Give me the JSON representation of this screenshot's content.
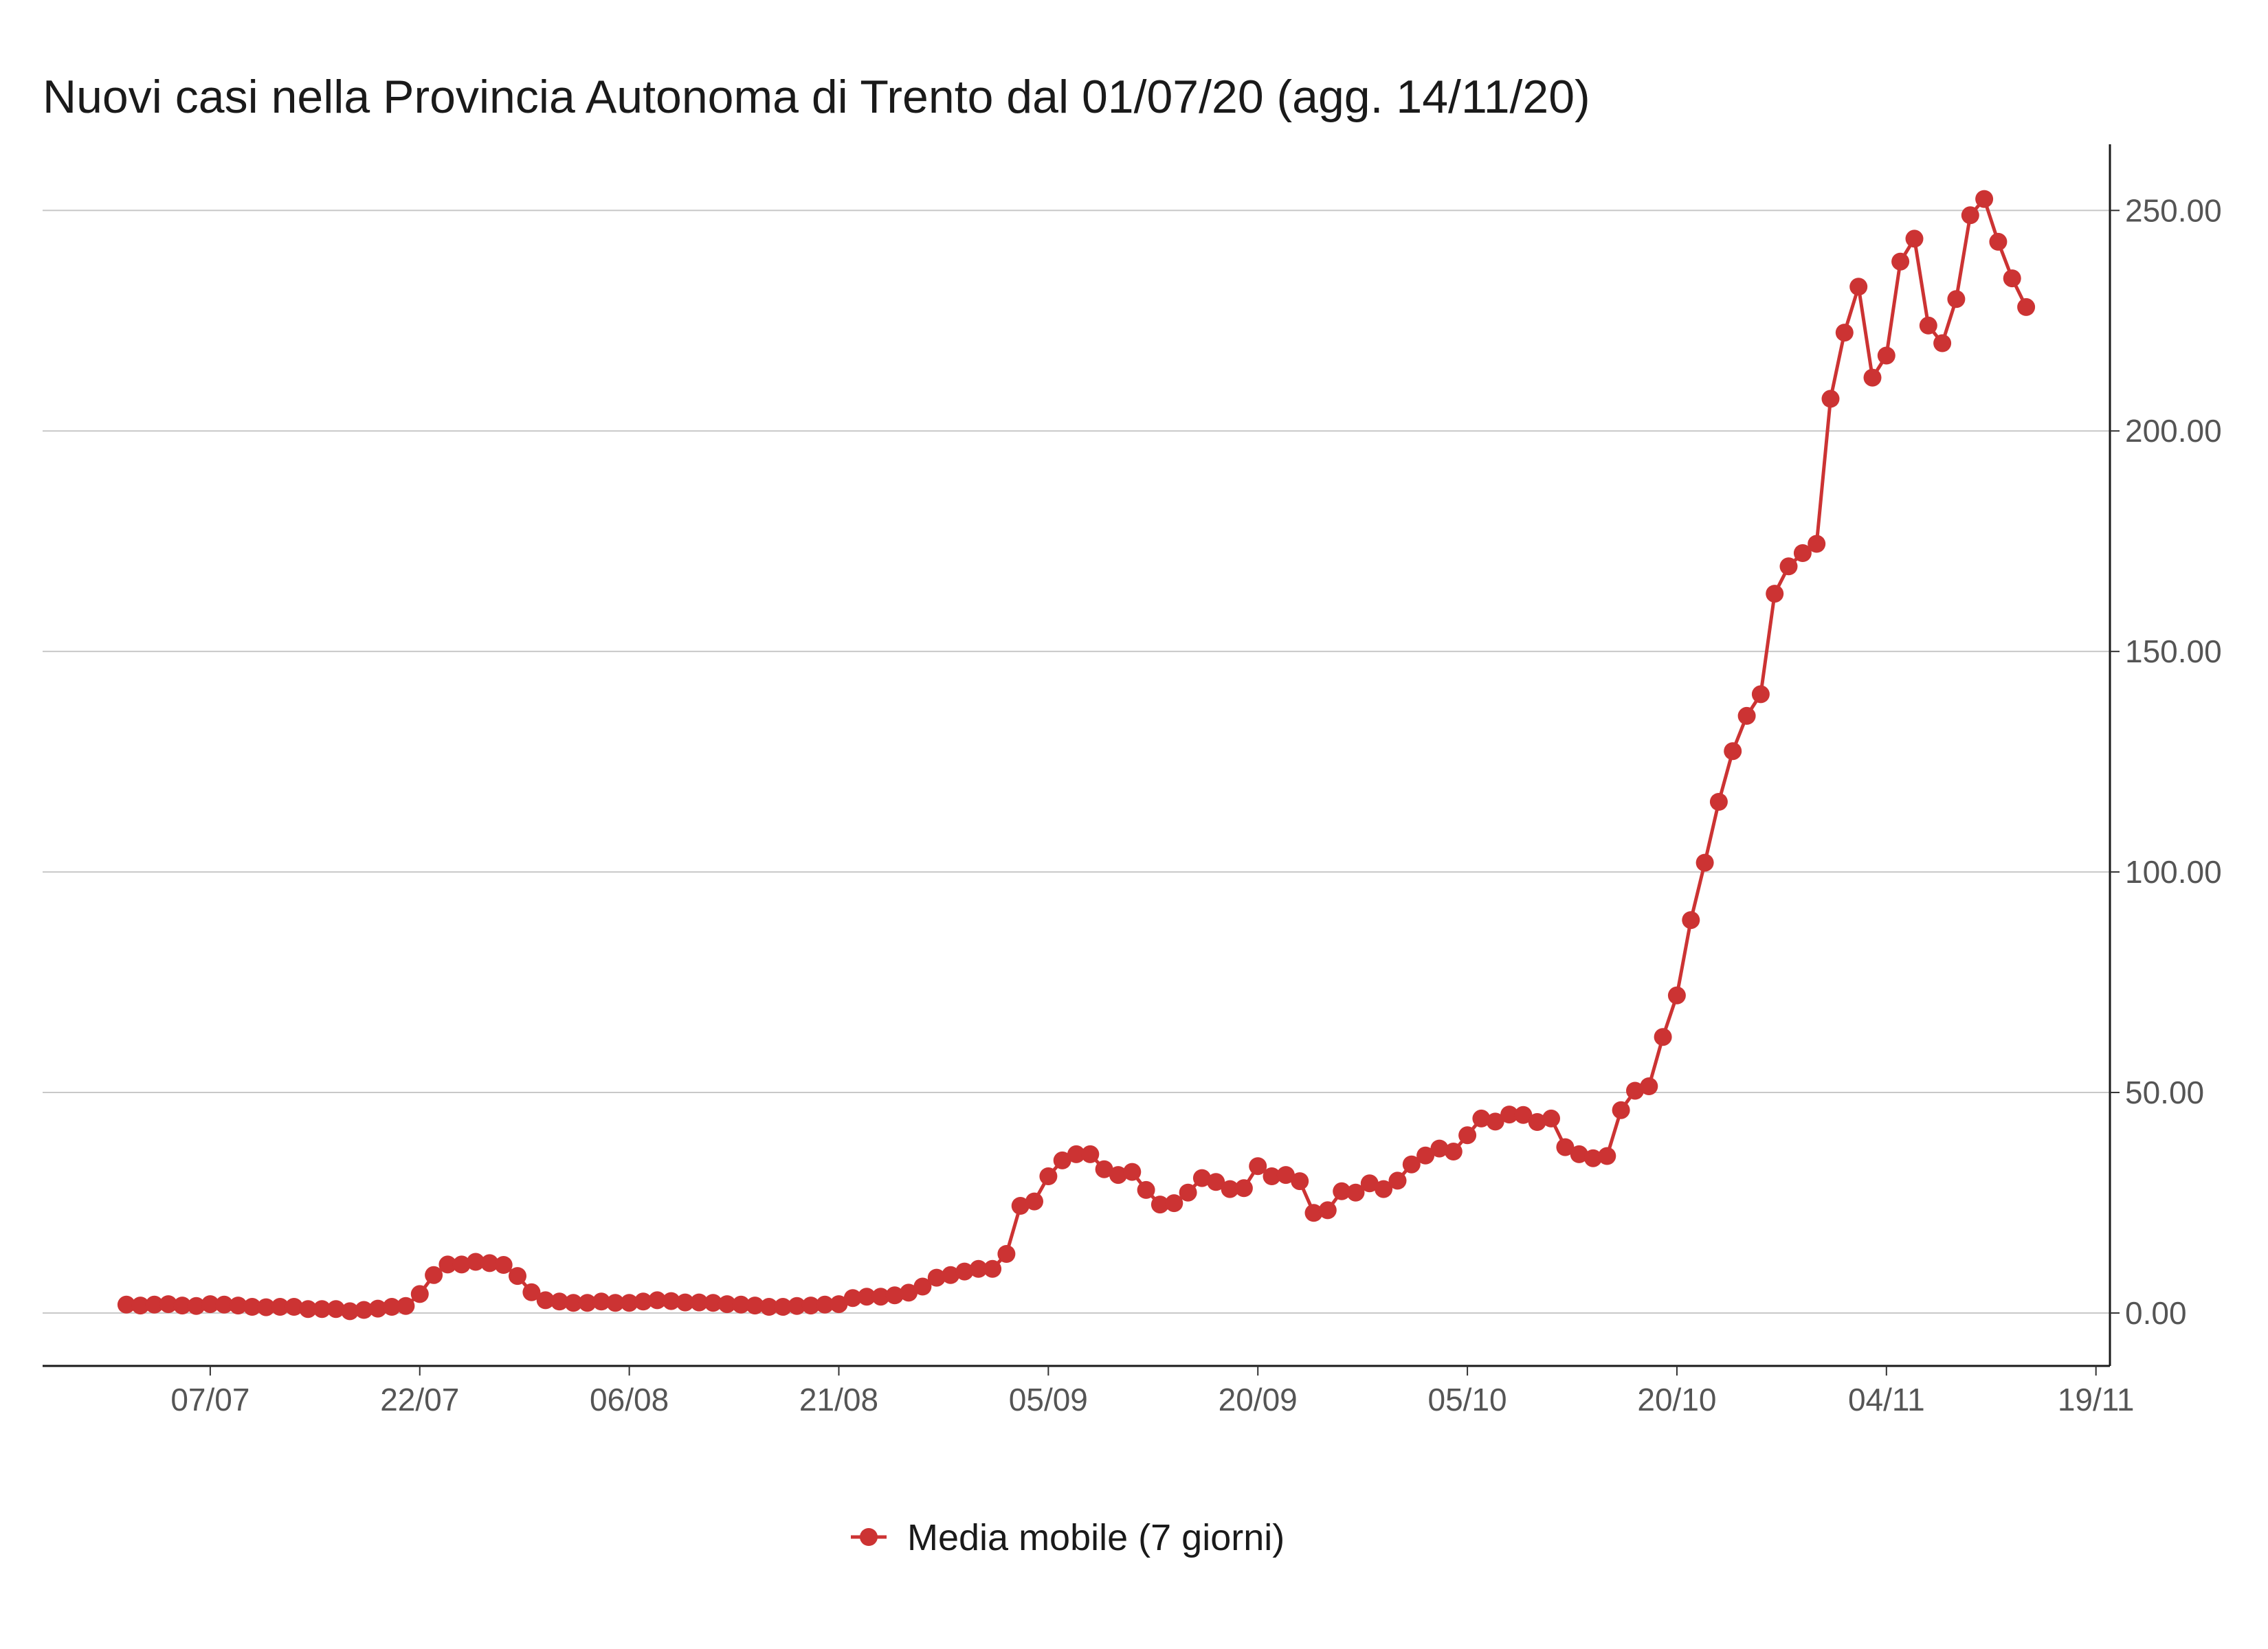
{
  "chart_data": {
    "type": "line",
    "title": "Nuovi casi nella Provincia Autonoma di Trento dal 01/07/20 (agg. 14/11/20)",
    "xlabel": "",
    "ylabel": "",
    "x_start": "2020-07-01",
    "x_ticks": [
      {
        "date": "2020-07-07",
        "label": "07/07"
      },
      {
        "date": "2020-07-22",
        "label": "22/07"
      },
      {
        "date": "2020-08-06",
        "label": "06/08"
      },
      {
        "date": "2020-08-21",
        "label": "21/08"
      },
      {
        "date": "2020-09-05",
        "label": "05/09"
      },
      {
        "date": "2020-09-20",
        "label": "20/09"
      },
      {
        "date": "2020-10-05",
        "label": "05/10"
      },
      {
        "date": "2020-10-20",
        "label": "20/10"
      },
      {
        "date": "2020-11-04",
        "label": "04/11"
      },
      {
        "date": "2020-11-19",
        "label": "19/11"
      }
    ],
    "xlim": [
      "2020-06-25",
      "2020-11-20"
    ],
    "ylim": [
      -12,
      265
    ],
    "y_ticks": [
      {
        "value": 0,
        "label": "0.00"
      },
      {
        "value": 50,
        "label": "50.00"
      },
      {
        "value": 100,
        "label": "100.00"
      },
      {
        "value": 150,
        "label": "150.00"
      },
      {
        "value": 200,
        "label": "200.00"
      },
      {
        "value": 250,
        "label": "250.00"
      }
    ],
    "y_axis_position": "right",
    "grid": "horizontal",
    "legend_position": "bottom-center",
    "series": [
      {
        "name": "Media mobile (7 giorni)",
        "color": "#cc3333",
        "marker": "circle",
        "values": [
          1.9,
          1.7,
          1.9,
          2.0,
          1.7,
          1.6,
          2.0,
          1.9,
          1.7,
          1.4,
          1.3,
          1.4,
          1.4,
          0.9,
          0.9,
          0.9,
          0.4,
          0.7,
          1.0,
          1.4,
          1.6,
          4.3,
          8.6,
          11.0,
          11.0,
          11.6,
          11.3,
          10.9,
          8.4,
          4.7,
          2.9,
          2.6,
          2.3,
          2.3,
          2.6,
          2.3,
          2.3,
          2.6,
          2.9,
          2.7,
          2.4,
          2.4,
          2.3,
          2.0,
          1.9,
          1.7,
          1.4,
          1.4,
          1.6,
          1.7,
          1.9,
          2.0,
          3.4,
          3.7,
          3.7,
          4.0,
          4.6,
          6.0,
          8.0,
          8.6,
          9.4,
          10.0,
          10.0,
          13.4,
          24.3,
          25.3,
          31.0,
          34.6,
          36.0,
          36.0,
          32.6,
          31.3,
          32.0,
          27.9,
          24.6,
          24.9,
          27.3,
          30.6,
          29.7,
          28.1,
          28.3,
          33.3,
          31.0,
          31.3,
          29.9,
          22.7,
          23.3,
          27.6,
          27.3,
          29.4,
          28.1,
          30.0,
          33.7,
          35.7,
          37.3,
          36.6,
          40.3,
          44.1,
          43.4,
          45.0,
          44.9,
          43.3,
          44.1,
          37.6,
          36.0,
          35.1,
          35.6,
          46.0,
          50.4,
          51.4,
          62.6,
          72.0,
          89.1,
          102.1,
          115.9,
          127.4,
          135.4,
          140.3,
          163.1,
          169.3,
          172.3,
          174.4,
          207.3,
          222.3,
          232.7,
          212.1,
          217.1,
          238.4,
          243.6,
          223.9,
          219.9,
          229.9,
          248.9,
          252.6,
          242.9,
          234.6,
          228.1
        ]
      }
    ]
  }
}
